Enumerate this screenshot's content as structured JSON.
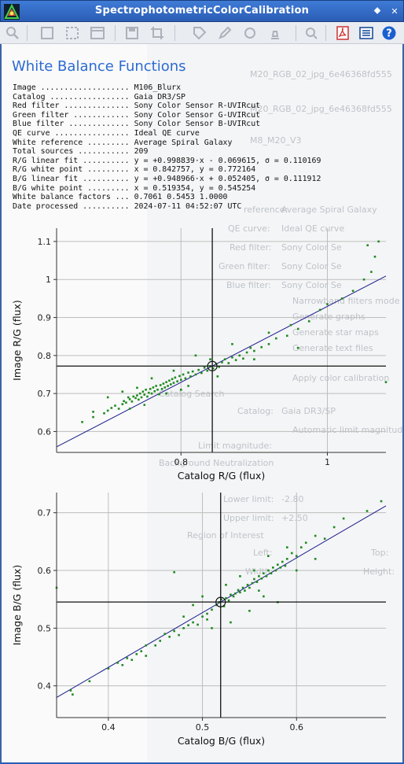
{
  "window": {
    "title": "SpectrophotometricColorCalibration"
  },
  "toolbar": {
    "tools": [
      "zoom-icon",
      "fit-icon",
      "zoom-fit-icon",
      "window-icon",
      "save-icon",
      "crop-icon",
      "tag-icon",
      "edit-icon",
      "color-icon",
      "stamp-icon",
      "search-icon",
      "pdf-icon",
      "list-icon",
      "help-icon"
    ]
  },
  "heading": "White Balance Functions",
  "info": [
    {
      "label": "Image ...................",
      "value": "M106_Blurx"
    },
    {
      "label": "Catalog .................",
      "value": "Gaia DR3/SP"
    },
    {
      "label": "Red filter ..............",
      "value": "Sony Color Sensor R-UVIRcut"
    },
    {
      "label": "Green filter ............",
      "value": "Sony Color Sensor G-UVIRcut"
    },
    {
      "label": "Blue filter .............",
      "value": "Sony Color Sensor B-UVIRcut"
    },
    {
      "label": "QE curve ................",
      "value": "Ideal QE curve"
    },
    {
      "label": "White reference .........",
      "value": "Average Spiral Galaxy"
    },
    {
      "label": "Total sources ...........",
      "value": "209"
    },
    {
      "label": "R/G linear fit ..........",
      "value": "y = +0.998839·x - 0.069615, σ = 0.110169"
    },
    {
      "label": "R/G white point .........",
      "value": "x = 0.842757, y = 0.772164"
    },
    {
      "label": "B/G linear fit ..........",
      "value": "y = +0.948966·x + 0.052405, σ = 0.111912"
    },
    {
      "label": "B/G white point .........",
      "value": "x = 0.519354, y = 0.545254"
    },
    {
      "label": "White balance factors ...",
      "value": "0.7061 0.5453 1.0000"
    },
    {
      "label": "Date processed ..........",
      "value": "2024-07-11 04:52:07 UTC"
    }
  ],
  "background_panel": {
    "items": [
      "M20_RGB_02_jpg_6e46368fd555",
      "M20_RGB_02_jpg_6e46368fd555",
      "M8_M20_V3",
      "reference:",
      "Average Spiral Galaxy",
      "QE curve:",
      "Ideal QE curve",
      "Red filter:",
      "Sony Color Se",
      "Green filter:",
      "Sony Color Se",
      "Blue filter:",
      "Sony Color Se",
      "Narrowband filters mode",
      "Generate graphs",
      "Generate star maps",
      "Generate text files",
      "Apply color calibration",
      "Catalog Search",
      "Catalog:",
      "Gaia DR3/SP",
      "Automatic limit magnitude",
      "Limit magnitude:",
      "Background Neutralization",
      "Lower limit:",
      "-2.80",
      "Upper limit:",
      "+2.50",
      "Region of Interest",
      "Left:",
      "Top:",
      "Width:",
      "Height:"
    ]
  },
  "chart_data": [
    {
      "type": "scatter",
      "xlabel": "Catalog R/G (flux)",
      "ylabel": "Image R/G (flux)",
      "xlim": [
        0.63,
        1.08
      ],
      "ylim": [
        0.545,
        1.135
      ],
      "xticks": [
        0.8,
        1
      ],
      "xtick_labels": [
        "0.8",
        "1"
      ],
      "yticks": [
        0.6,
        0.7,
        0.8,
        0.9,
        1,
        1.1
      ],
      "ytick_labels": [
        "0.6",
        "0.7",
        "0.8",
        "0.9",
        "1",
        "1.1"
      ],
      "grid": true,
      "fit": {
        "slope": 0.998839,
        "intercept": -0.069615
      },
      "white_point": {
        "x": 0.842757,
        "y": 0.772164
      },
      "point_color": "#1f8a1f",
      "line_color": "#1a1a8c",
      "points": [
        [
          0.665,
          0.625
        ],
        [
          0.68,
          0.638
        ],
        [
          0.695,
          0.648
        ],
        [
          0.7,
          0.655
        ],
        [
          0.705,
          0.662
        ],
        [
          0.71,
          0.668
        ],
        [
          0.715,
          0.66
        ],
        [
          0.72,
          0.672
        ],
        [
          0.722,
          0.68
        ],
        [
          0.725,
          0.676
        ],
        [
          0.728,
          0.69
        ],
        [
          0.73,
          0.685
        ],
        [
          0.733,
          0.679
        ],
        [
          0.735,
          0.692
        ],
        [
          0.738,
          0.688
        ],
        [
          0.74,
          0.695
        ],
        [
          0.742,
          0.684
        ],
        [
          0.744,
          0.7
        ],
        [
          0.746,
          0.69
        ],
        [
          0.748,
          0.705
        ],
        [
          0.75,
          0.697
        ],
        [
          0.752,
          0.71
        ],
        [
          0.754,
          0.692
        ],
        [
          0.756,
          0.702
        ],
        [
          0.758,
          0.712
        ],
        [
          0.76,
          0.7
        ],
        [
          0.762,
          0.716
        ],
        [
          0.764,
          0.706
        ],
        [
          0.766,
          0.72
        ],
        [
          0.768,
          0.71
        ],
        [
          0.77,
          0.698
        ],
        [
          0.772,
          0.722
        ],
        [
          0.774,
          0.712
        ],
        [
          0.776,
          0.726
        ],
        [
          0.778,
          0.716
        ],
        [
          0.78,
          0.73
        ],
        [
          0.782,
          0.72
        ],
        [
          0.784,
          0.734
        ],
        [
          0.786,
          0.724
        ],
        [
          0.788,
          0.738
        ],
        [
          0.79,
          0.728
        ],
        [
          0.792,
          0.742
        ],
        [
          0.795,
          0.732
        ],
        [
          0.798,
          0.746
        ],
        [
          0.8,
          0.736
        ],
        [
          0.803,
          0.75
        ],
        [
          0.806,
          0.74
        ],
        [
          0.81,
          0.755
        ],
        [
          0.813,
          0.745
        ],
        [
          0.816,
          0.758
        ],
        [
          0.82,
          0.75
        ],
        [
          0.824,
          0.762
        ],
        [
          0.828,
          0.754
        ],
        [
          0.832,
          0.768
        ],
        [
          0.836,
          0.76
        ],
        [
          0.84,
          0.772
        ],
        [
          0.844,
          0.766
        ],
        [
          0.848,
          0.778
        ],
        [
          0.852,
          0.77
        ],
        [
          0.856,
          0.782
        ],
        [
          0.86,
          0.79
        ],
        [
          0.865,
          0.78
        ],
        [
          0.87,
          0.795
        ],
        [
          0.875,
          0.788
        ],
        [
          0.88,
          0.8
        ],
        [
          0.885,
          0.792
        ],
        [
          0.89,
          0.808
        ],
        [
          0.895,
          0.82
        ],
        [
          0.9,
          0.812
        ],
        [
          0.91,
          0.822
        ],
        [
          0.92,
          0.83
        ],
        [
          0.93,
          0.845
        ],
        [
          0.945,
          0.852
        ],
        [
          0.96,
          0.87
        ],
        [
          0.975,
          0.89
        ],
        [
          0.99,
          0.92
        ],
        [
          1.0,
          0.935
        ],
        [
          1.02,
          0.95
        ],
        [
          1.035,
          0.97
        ],
        [
          1.05,
          1.0
        ],
        [
          1.06,
          1.02
        ],
        [
          1.065,
          1.06
        ],
        [
          1.07,
          1.1
        ],
        [
          1.055,
          1.09
        ],
        [
          0.7,
          0.69
        ],
        [
          0.73,
          0.66
        ],
        [
          0.76,
          0.74
        ],
        [
          0.8,
          0.71
        ],
        [
          0.82,
          0.8
        ],
        [
          0.85,
          0.745
        ],
        [
          0.87,
          0.83
        ],
        [
          0.9,
          0.79
        ],
        [
          0.75,
          0.67
        ],
        [
          0.72,
          0.705
        ],
        [
          0.68,
          0.652
        ],
        [
          0.79,
          0.76
        ],
        [
          0.84,
          0.79
        ],
        [
          0.81,
          0.72
        ],
        [
          0.78,
          0.7
        ],
        [
          0.74,
          0.715
        ],
        [
          0.92,
          0.86
        ],
        [
          0.95,
          0.88
        ],
        [
          1.08,
          0.73
        ],
        [
          0.96,
          0.82
        ]
      ]
    },
    {
      "type": "scatter",
      "xlabel": "Catalog B/G (flux)",
      "ylabel": "Image B/G (flux)",
      "xlim": [
        0.345,
        0.695
      ],
      "ylim": [
        0.345,
        0.735
      ],
      "xticks": [
        0.4,
        0.5,
        0.6
      ],
      "xtick_labels": [
        "0.4",
        "0.5",
        "0.6"
      ],
      "yticks": [
        0.4,
        0.5,
        0.6,
        0.7
      ],
      "ytick_labels": [
        "0.4",
        "0.5",
        "0.6",
        "0.7"
      ],
      "grid": true,
      "fit": {
        "slope": 0.948966,
        "intercept": 0.052405
      },
      "white_point": {
        "x": 0.519354,
        "y": 0.545254
      },
      "point_color": "#1f8a1f",
      "line_color": "#1a1a8c",
      "points": [
        [
          0.36,
          0.392
        ],
        [
          0.362,
          0.385
        ],
        [
          0.38,
          0.408
        ],
        [
          0.4,
          0.43
        ],
        [
          0.41,
          0.44
        ],
        [
          0.415,
          0.436
        ],
        [
          0.42,
          0.448
        ],
        [
          0.425,
          0.445
        ],
        [
          0.43,
          0.455
        ],
        [
          0.435,
          0.46
        ],
        [
          0.44,
          0.452
        ],
        [
          0.45,
          0.47
        ],
        [
          0.455,
          0.478
        ],
        [
          0.46,
          0.49
        ],
        [
          0.465,
          0.485
        ],
        [
          0.47,
          0.495
        ],
        [
          0.475,
          0.488
        ],
        [
          0.48,
          0.5
        ],
        [
          0.485,
          0.505
        ],
        [
          0.49,
          0.51
        ],
        [
          0.495,
          0.506
        ],
        [
          0.5,
          0.52
        ],
        [
          0.505,
          0.525
        ],
        [
          0.51,
          0.532
        ],
        [
          0.515,
          0.54
        ],
        [
          0.518,
          0.545
        ],
        [
          0.52,
          0.55
        ],
        [
          0.523,
          0.538
        ],
        [
          0.525,
          0.552
        ],
        [
          0.528,
          0.548
        ],
        [
          0.53,
          0.558
        ],
        [
          0.533,
          0.555
        ],
        [
          0.535,
          0.56
        ],
        [
          0.538,
          0.566
        ],
        [
          0.54,
          0.562
        ],
        [
          0.543,
          0.57
        ],
        [
          0.545,
          0.565
        ],
        [
          0.548,
          0.575
        ],
        [
          0.55,
          0.57
        ],
        [
          0.553,
          0.578
        ],
        [
          0.555,
          0.585
        ],
        [
          0.558,
          0.58
        ],
        [
          0.56,
          0.59
        ],
        [
          0.563,
          0.586
        ],
        [
          0.565,
          0.595
        ],
        [
          0.568,
          0.59
        ],
        [
          0.57,
          0.6
        ],
        [
          0.573,
          0.595
        ],
        [
          0.575,
          0.605
        ],
        [
          0.578,
          0.6
        ],
        [
          0.58,
          0.61
        ],
        [
          0.583,
          0.605
        ],
        [
          0.585,
          0.615
        ],
        [
          0.588,
          0.608
        ],
        [
          0.59,
          0.62
        ],
        [
          0.595,
          0.63
        ],
        [
          0.6,
          0.625
        ],
        [
          0.605,
          0.64
        ],
        [
          0.61,
          0.648
        ],
        [
          0.62,
          0.66
        ],
        [
          0.63,
          0.655
        ],
        [
          0.64,
          0.675
        ],
        [
          0.65,
          0.69
        ],
        [
          0.675,
          0.703
        ],
        [
          0.69,
          0.72
        ],
        [
          0.345,
          0.57
        ],
        [
          0.47,
          0.597
        ],
        [
          0.5,
          0.555
        ],
        [
          0.53,
          0.51
        ],
        [
          0.56,
          0.565
        ],
        [
          0.58,
          0.545
        ],
        [
          0.54,
          0.59
        ],
        [
          0.51,
          0.5
        ],
        [
          0.49,
          0.54
        ],
        [
          0.6,
          0.6
        ],
        [
          0.62,
          0.62
        ],
        [
          0.44,
          0.47
        ],
        [
          0.48,
          0.52
        ],
        [
          0.55,
          0.53
        ],
        [
          0.57,
          0.625
        ],
        [
          0.525,
          0.575
        ],
        [
          0.555,
          0.6
        ],
        [
          0.59,
          0.64
        ],
        [
          0.565,
          0.555
        ],
        [
          0.505,
          0.515
        ]
      ]
    }
  ]
}
